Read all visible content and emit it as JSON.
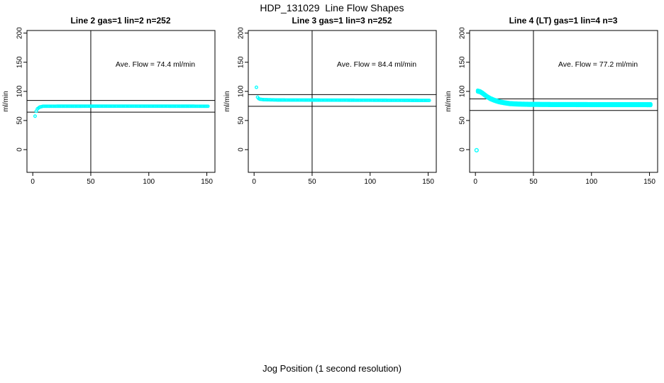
{
  "figure": {
    "title": "HDP_131029  Line Flow Shapes",
    "xlabel": "Jog Position (1 second resolution)",
    "background": "#ffffff"
  },
  "colors": {
    "points": "#00ffff",
    "axis": "#000000",
    "text": "#000000"
  },
  "chart_data": [
    {
      "type": "scatter",
      "title": "Line 2 gas=1 lin=2 n=252",
      "annotation": "Ave. Flow =  74.4  ml/min",
      "ave_flow_ml_min": 74.4,
      "n": 252,
      "ylabel": "ml/min",
      "x_ticks": [
        0,
        50,
        100,
        150
      ],
      "y_ticks": [
        0,
        50,
        100,
        150,
        200
      ],
      "xlim": [
        -5,
        157
      ],
      "ylim": [
        -39,
        204.5
      ],
      "grid": false,
      "vline_x": 50,
      "ref_lines_y": [
        84.4,
        64.4
      ],
      "annotation_pos": [
        106,
        148
      ],
      "marker_r": 1.8,
      "offsets": [
        0
      ],
      "series": {
        "x_start": 2,
        "x_end": 151,
        "step": 1,
        "keypoints": [
          [
            2,
            57.5
          ],
          [
            3,
            66
          ],
          [
            4,
            70
          ],
          [
            6,
            73
          ],
          [
            9,
            74.5
          ],
          [
            80,
            74.6
          ],
          [
            151,
            74.5
          ]
        ]
      },
      "outliers": []
    },
    {
      "type": "scatter",
      "title": "Line 3 gas=1 lin=3 n=252",
      "annotation": "Ave. Flow =  84.4  ml/min",
      "ave_flow_ml_min": 84.4,
      "n": 252,
      "ylabel": "ml/min",
      "x_ticks": [
        0,
        50,
        100,
        150
      ],
      "y_ticks": [
        0,
        50,
        100,
        150,
        200
      ],
      "xlim": [
        -5,
        157
      ],
      "ylim": [
        -39,
        204.5
      ],
      "grid": false,
      "vline_x": 50,
      "ref_lines_y": [
        94.4,
        74.4
      ],
      "annotation_pos": [
        106,
        148
      ],
      "marker_r": 1.8,
      "offsets": [
        0
      ],
      "series": {
        "x_start": 2,
        "x_end": 151,
        "step": 1,
        "keypoints": [
          [
            2,
            107
          ],
          [
            3,
            90
          ],
          [
            4,
            87.5
          ],
          [
            5,
            86.5
          ],
          [
            8,
            85.8
          ],
          [
            20,
            85.2
          ],
          [
            100,
            84.8
          ],
          [
            151,
            84.5
          ]
        ]
      },
      "outliers": []
    },
    {
      "type": "scatter",
      "title": "Line 4 (LT) gas=1 lin=4 n=3",
      "annotation": "Ave. Flow =  77.2  ml/min",
      "ave_flow_ml_min": 77.2,
      "n": 3,
      "ylabel": "ml/min",
      "x_ticks": [
        0,
        50,
        100,
        150
      ],
      "y_ticks": [
        0,
        50,
        100,
        150,
        200
      ],
      "xlim": [
        -5,
        157
      ],
      "ylim": [
        -39,
        204.5
      ],
      "grid": false,
      "vline_x": 50,
      "ref_lines_y": [
        87.2,
        67.2
      ],
      "annotation_pos": [
        106,
        148
      ],
      "marker_r": 2.0,
      "offsets": [
        -1.2,
        0,
        1.2
      ],
      "series": {
        "x_start": 2,
        "x_end": 151,
        "step": 1,
        "keypoints": [
          [
            2,
            100.5
          ],
          [
            4,
            99.5
          ],
          [
            6,
            97
          ],
          [
            8,
            94
          ],
          [
            10,
            91
          ],
          [
            13,
            87.5
          ],
          [
            16,
            85
          ],
          [
            19,
            83
          ],
          [
            22,
            81.5
          ],
          [
            25,
            80.5
          ],
          [
            30,
            79
          ],
          [
            36,
            78.3
          ],
          [
            45,
            77.8
          ],
          [
            70,
            77.4
          ],
          [
            151,
            77.2
          ]
        ]
      },
      "outliers": [
        [
          1,
          -1
        ]
      ]
    }
  ]
}
